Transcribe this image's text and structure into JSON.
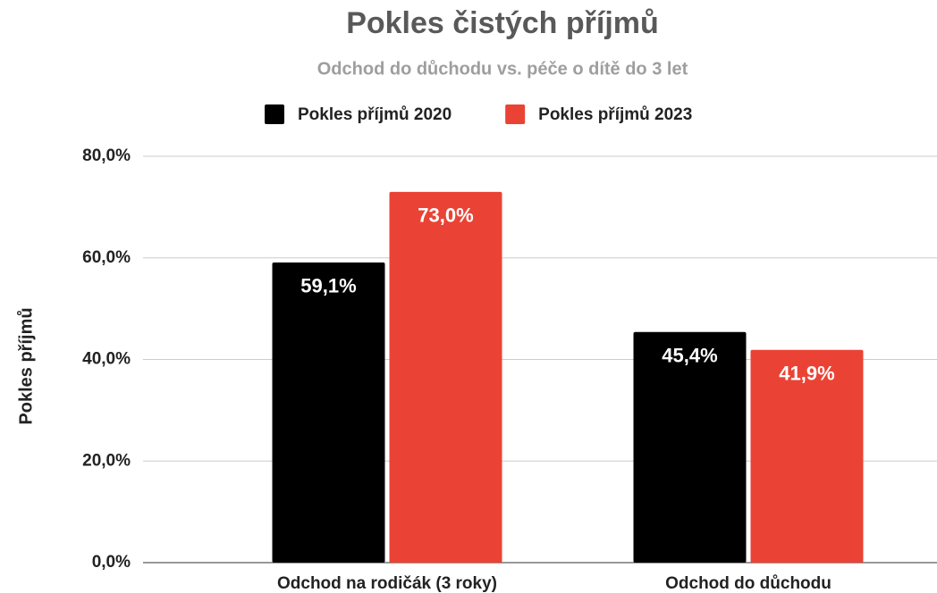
{
  "chart_data": {
    "type": "bar",
    "title": "Pokles čistých příjmů",
    "subtitle": "Odchod do důchodu vs. péče o dítě do 3 let",
    "y_label": "Pokles příjmů",
    "categories": [
      "Odchod na rodičák (3 roky)",
      "Odchod do důchodu"
    ],
    "series": [
      {
        "name": "Pokles příjmů 2020",
        "color": "#000000",
        "values": [
          59.1,
          45.4
        ],
        "value_labels": [
          "59,1%",
          "45,4%"
        ]
      },
      {
        "name": "Pokles příjmů 2023",
        "color": "#ea4335",
        "values": [
          73.0,
          41.9
        ],
        "value_labels": [
          "73,0%",
          "41,9%"
        ]
      }
    ],
    "ylim": [
      0,
      80
    ],
    "yticks": [
      {
        "value": 0,
        "label": "0,0%"
      },
      {
        "value": 20,
        "label": "20,0%"
      },
      {
        "value": 40,
        "label": "40,0%"
      },
      {
        "value": 60,
        "label": "60,0%"
      },
      {
        "value": 80,
        "label": "80,0%"
      }
    ],
    "grid": true,
    "legend": "top"
  }
}
